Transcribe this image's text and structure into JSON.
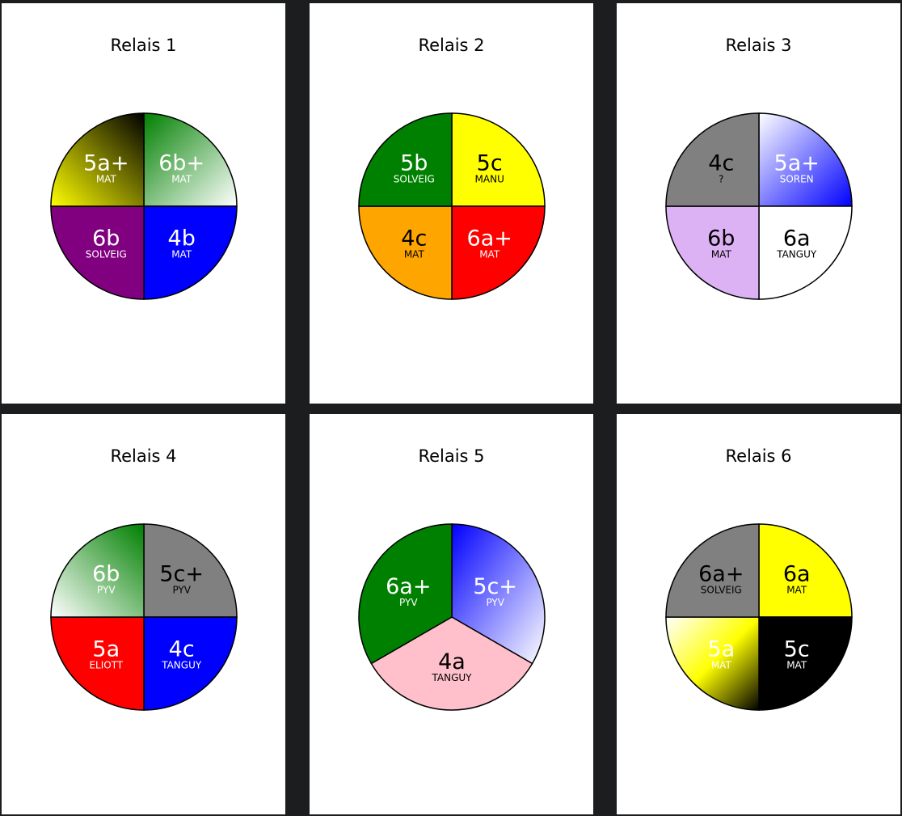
{
  "relays": [
    {
      "title": "Relais 1",
      "segments": [
        {
          "grade": "6b+",
          "name": "MAT",
          "fill": {
            "type": "linear",
            "from": "#008000",
            "to": "#ffffff",
            "dir": "tl-br"
          },
          "text": "#ffffff"
        },
        {
          "grade": "4b",
          "name": "MAT",
          "fill": {
            "type": "solid",
            "color": "#0000ff"
          },
          "text": "#ffffff"
        },
        {
          "grade": "6b",
          "name": "SOLVEIG",
          "fill": {
            "type": "solid",
            "color": "#800080"
          },
          "text": "#ffffff"
        },
        {
          "grade": "5a+",
          "name": "MAT",
          "fill": {
            "type": "linear",
            "from": "#000000",
            "to": "#ffff00",
            "dir": "tr-bl"
          },
          "text": "#ffffff"
        }
      ]
    },
    {
      "title": "Relais 2",
      "segments": [
        {
          "grade": "5c",
          "name": "MANU",
          "fill": {
            "type": "solid",
            "color": "#ffff00"
          },
          "text": "#000000"
        },
        {
          "grade": "6a+",
          "name": "MAT",
          "fill": {
            "type": "solid",
            "color": "#ff0000"
          },
          "text": "#ffffff"
        },
        {
          "grade": "4c",
          "name": "MAT",
          "fill": {
            "type": "solid",
            "color": "#ffa500"
          },
          "text": "#000000"
        },
        {
          "grade": "5b",
          "name": "SOLVEIG",
          "fill": {
            "type": "solid",
            "color": "#008000"
          },
          "text": "#ffffff"
        }
      ]
    },
    {
      "title": "Relais 3",
      "segments": [
        {
          "grade": "5a+",
          "name": "SOREN",
          "fill": {
            "type": "linear",
            "from": "#ffffff",
            "to": "#0000ff",
            "dir": "tl-br"
          },
          "text": "#ffffff"
        },
        {
          "grade": "6a",
          "name": "TANGUY",
          "fill": {
            "type": "solid",
            "color": "#ffffff"
          },
          "text": "#000000"
        },
        {
          "grade": "6b",
          "name": "MAT",
          "fill": {
            "type": "solid",
            "color": "#dcb2f5"
          },
          "text": "#000000"
        },
        {
          "grade": "4c",
          "name": "?",
          "fill": {
            "type": "solid",
            "color": "#808080"
          },
          "text": "#000000"
        }
      ]
    },
    {
      "title": "Relais 4",
      "segments": [
        {
          "grade": "5c+",
          "name": "PYV",
          "fill": {
            "type": "solid",
            "color": "#808080"
          },
          "text": "#000000"
        },
        {
          "grade": "4c",
          "name": "TANGUY",
          "fill": {
            "type": "solid",
            "color": "#0000ff"
          },
          "text": "#ffffff"
        },
        {
          "grade": "5a",
          "name": "ELIOTT",
          "fill": {
            "type": "solid",
            "color": "#ff0000"
          },
          "text": "#ffffff"
        },
        {
          "grade": "6b",
          "name": "PYV",
          "fill": {
            "type": "linear",
            "from": "#008000",
            "to": "#ffffff",
            "dir": "tr-bl"
          },
          "text": "#ffffff"
        }
      ]
    },
    {
      "title": "Relais 5",
      "segments": [
        {
          "grade": "5c+",
          "name": "PYV",
          "fill": {
            "type": "linear",
            "from": "#0000ff",
            "to": "#ffffff",
            "dir": "tl-br"
          },
          "text": "#ffffff"
        },
        {
          "grade": "4a",
          "name": "TANGUY",
          "fill": {
            "type": "solid",
            "color": "#ffc0cb"
          },
          "text": "#000000"
        },
        {
          "grade": "6a+",
          "name": "PYV",
          "fill": {
            "type": "solid",
            "color": "#008000"
          },
          "text": "#ffffff"
        }
      ]
    },
    {
      "title": "Relais 6",
      "segments": [
        {
          "grade": "6a",
          "name": "MAT",
          "fill": {
            "type": "solid",
            "color": "#ffff00"
          },
          "text": "#000000"
        },
        {
          "grade": "5c",
          "name": "MAT",
          "fill": {
            "type": "solid",
            "color": "#000000"
          },
          "text": "#ffffff"
        },
        {
          "grade": "5a",
          "name": "MAT",
          "fill": {
            "type": "linear",
            "from": "#ffffff",
            "to": "#000000",
            "via": "#ffff00",
            "dir": "tl-br"
          },
          "text": "#ffffff"
        },
        {
          "grade": "6a+",
          "name": "SOLVEIG",
          "fill": {
            "type": "solid",
            "color": "#808080"
          },
          "text": "#000000"
        }
      ]
    }
  ]
}
